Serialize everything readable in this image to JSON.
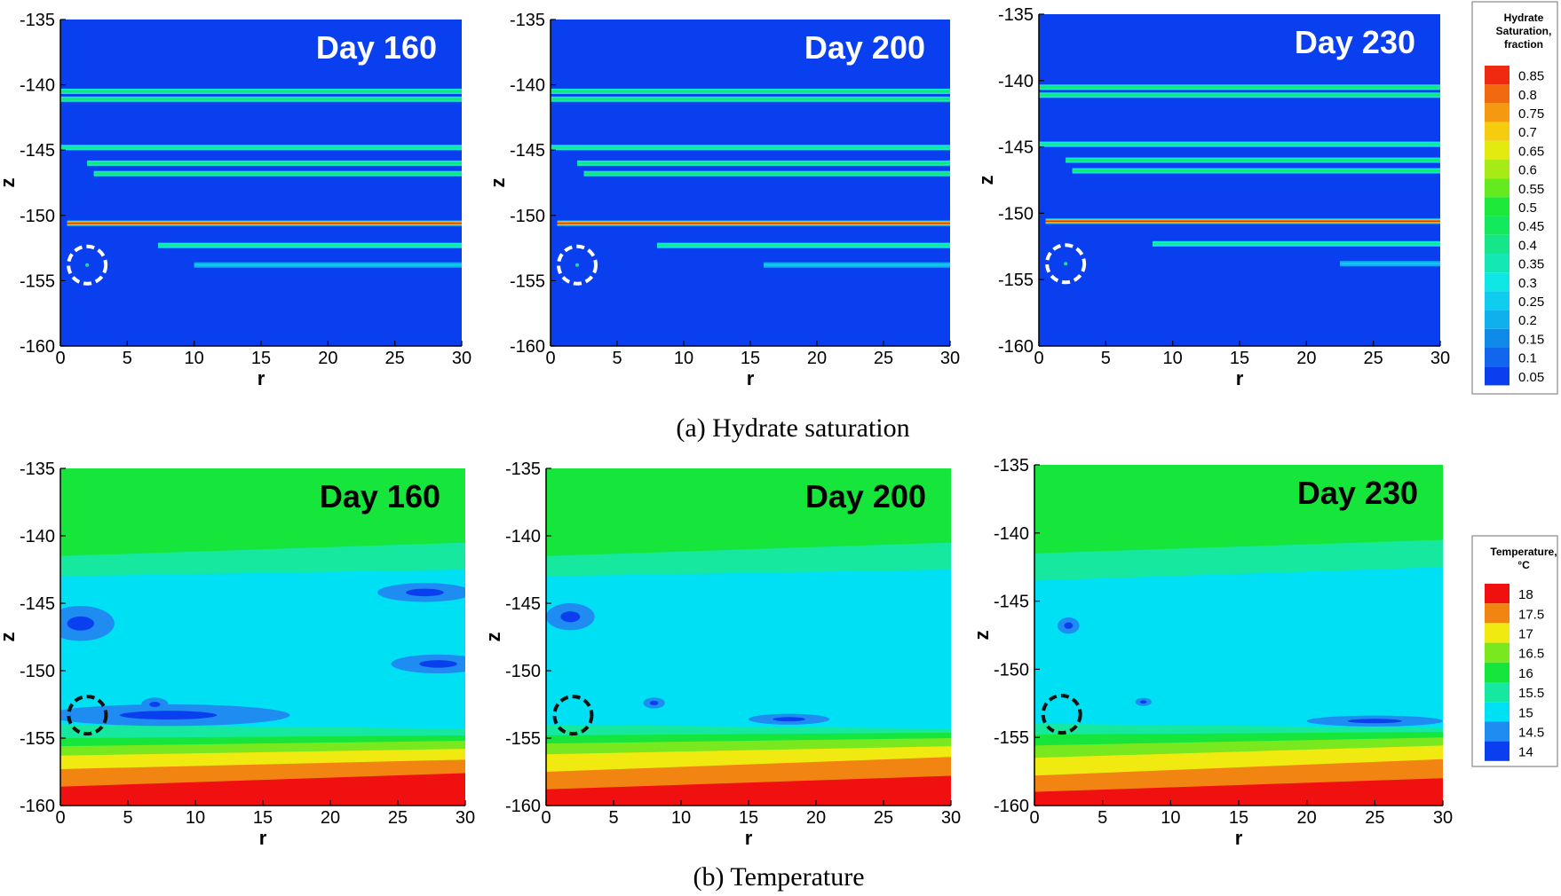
{
  "chart_data": [
    {
      "type": "heatmap",
      "row": "hydrate",
      "panel_label": "Day 160",
      "xlabel": "r",
      "ylabel": "z",
      "xlim": [
        0,
        30
      ],
      "ylim": [
        -160,
        -135
      ],
      "xticks": [
        "0",
        "5",
        "10",
        "15",
        "20",
        "25",
        "30"
      ],
      "yticks": [
        "-160",
        "-155",
        "-150",
        "-145",
        "-140",
        "-135"
      ],
      "background_value": 0.05,
      "layers": [
        {
          "z": -140.5,
          "r_start": 0,
          "value": 0.45
        },
        {
          "z": -141.1,
          "r_start": 0,
          "value": 0.45
        },
        {
          "z": -144.8,
          "r_start": 0,
          "value": 0.4
        },
        {
          "z": -146.0,
          "r_start": 2,
          "value": 0.45
        },
        {
          "z": -146.8,
          "r_start": 2.5,
          "value": 0.45
        },
        {
          "z": -150.6,
          "r_start": 0.5,
          "value": 0.85
        },
        {
          "z": -152.3,
          "r_start": 7.3,
          "value": 0.4
        },
        {
          "z": -153.8,
          "r_start": 10,
          "value": 0.25
        }
      ],
      "circle": {
        "r": 2,
        "z": -153.8
      }
    },
    {
      "type": "heatmap",
      "row": "hydrate",
      "panel_label": "Day 200",
      "xlabel": "r",
      "ylabel": "z",
      "xlim": [
        0,
        30
      ],
      "ylim": [
        -160,
        -135
      ],
      "xticks": [
        "0",
        "5",
        "10",
        "15",
        "20",
        "25",
        "30"
      ],
      "yticks": [
        "-160",
        "-155",
        "-150",
        "-145",
        "-140",
        "-135"
      ],
      "background_value": 0.05,
      "layers": [
        {
          "z": -140.5,
          "r_start": 0,
          "value": 0.45
        },
        {
          "z": -141.1,
          "r_start": 0,
          "value": 0.45
        },
        {
          "z": -144.8,
          "r_start": 0,
          "value": 0.4
        },
        {
          "z": -146.0,
          "r_start": 2,
          "value": 0.45
        },
        {
          "z": -146.8,
          "r_start": 2.5,
          "value": 0.45
        },
        {
          "z": -150.6,
          "r_start": 0.5,
          "value": 0.85
        },
        {
          "z": -152.3,
          "r_start": 8,
          "value": 0.4
        },
        {
          "z": -153.8,
          "r_start": 16,
          "value": 0.25
        }
      ],
      "circle": {
        "r": 2,
        "z": -153.8
      }
    },
    {
      "type": "heatmap",
      "row": "hydrate",
      "panel_label": "Day 230",
      "xlabel": "r",
      "ylabel": "z",
      "xlim": [
        0,
        30
      ],
      "ylim": [
        -160,
        -135
      ],
      "xticks": [
        "0",
        "5",
        "10",
        "15",
        "20",
        "25",
        "30"
      ],
      "yticks": [
        "-160",
        "-155",
        "-150",
        "-145",
        "-140",
        "-135"
      ],
      "background_value": 0.05,
      "layers": [
        {
          "z": -140.5,
          "r_start": 0,
          "value": 0.45
        },
        {
          "z": -141.1,
          "r_start": 0,
          "value": 0.45
        },
        {
          "z": -144.8,
          "r_start": 0,
          "value": 0.4
        },
        {
          "z": -146.0,
          "r_start": 2,
          "value": 0.45
        },
        {
          "z": -146.8,
          "r_start": 2.5,
          "value": 0.45
        },
        {
          "z": -150.6,
          "r_start": 0.5,
          "value": 0.85
        },
        {
          "z": -152.3,
          "r_start": 8.5,
          "value": 0.4
        },
        {
          "z": -153.8,
          "r_start": 22.5,
          "value": 0.25
        }
      ],
      "circle": {
        "r": 2,
        "z": -153.8
      }
    },
    {
      "type": "heatmap",
      "row": "temperature",
      "panel_label": "Day 160",
      "xlabel": "r",
      "ylabel": "z",
      "xlim": [
        0,
        30
      ],
      "ylim": [
        -160,
        -135
      ],
      "xticks": [
        "0",
        "5",
        "10",
        "15",
        "20",
        "25",
        "30"
      ],
      "yticks": [
        "-160",
        "-155",
        "-150",
        "-145",
        "-140",
        "-135"
      ],
      "bands": [
        {
          "value": 16,
          "z_left": -141.5,
          "z_right": -140.5
        },
        {
          "value": 15.5,
          "z_left": -143,
          "z_right": -142.5
        },
        {
          "value": 15,
          "z_left": -151,
          "z_right": -152
        },
        {
          "value": 15.5,
          "z_left": -154,
          "z_right": -154.3
        },
        {
          "value": 16,
          "z_left": -155,
          "z_right": -154.8
        },
        {
          "value": 16.5,
          "z_left": -155.6,
          "z_right": -155.2
        },
        {
          "value": 17,
          "z_left": -156.3,
          "z_right": -155.8
        },
        {
          "value": 17.5,
          "z_left": -157.3,
          "z_right": -156.6
        },
        {
          "value": 18,
          "z_left": -158.6,
          "z_right": -157.6
        }
      ],
      "cold_spots": [
        {
          "r": 1.5,
          "z": -146.5,
          "rx": 2.5,
          "rz": 1.3,
          "value": 14.5
        },
        {
          "r": 27,
          "z": -144.2,
          "rx": 3.5,
          "rz": 0.7,
          "value": 14.5
        },
        {
          "r": 28,
          "z": -149.5,
          "rx": 3.5,
          "rz": 0.7,
          "value": 14.5
        },
        {
          "r": 8,
          "z": -153.3,
          "rx": 9,
          "rz": 0.8,
          "value": 14.5
        },
        {
          "r": 7,
          "z": -152.5,
          "rx": 1,
          "rz": 0.5,
          "value": 14.5
        }
      ],
      "circle": {
        "r": 2,
        "z": -153.3
      }
    },
    {
      "type": "heatmap",
      "row": "temperature",
      "panel_label": "Day 200",
      "xlabel": "r",
      "ylabel": "z",
      "xlim": [
        0,
        30
      ],
      "ylim": [
        -160,
        -135
      ],
      "xticks": [
        "0",
        "5",
        "10",
        "15",
        "20",
        "25",
        "30"
      ],
      "yticks": [
        "-160",
        "-155",
        "-150",
        "-145",
        "-140",
        "-135"
      ],
      "bands": [
        {
          "value": 16,
          "z_left": -141.5,
          "z_right": -140.5
        },
        {
          "value": 15.5,
          "z_left": -143,
          "z_right": -142.5
        },
        {
          "value": 15,
          "z_left": -151,
          "z_right": -151.5
        },
        {
          "value": 15.5,
          "z_left": -154,
          "z_right": -154.3
        },
        {
          "value": 16,
          "z_left": -154.8,
          "z_right": -154.6
        },
        {
          "value": 16.5,
          "z_left": -155.4,
          "z_right": -155
        },
        {
          "value": 17,
          "z_left": -156.2,
          "z_right": -155.6
        },
        {
          "value": 17.5,
          "z_left": -157.5,
          "z_right": -156.4
        },
        {
          "value": 18,
          "z_left": -158.8,
          "z_right": -157.8
        }
      ],
      "cold_spots": [
        {
          "r": 1.8,
          "z": -146,
          "rx": 1.8,
          "rz": 1,
          "value": 14.5
        },
        {
          "r": 8,
          "z": -152.4,
          "rx": 0.8,
          "rz": 0.4,
          "value": 14.5
        },
        {
          "r": 18,
          "z": -153.6,
          "rx": 3,
          "rz": 0.4,
          "value": 14.5
        }
      ],
      "circle": {
        "r": 2,
        "z": -153.3
      }
    },
    {
      "type": "heatmap",
      "row": "temperature",
      "panel_label": "Day 230",
      "xlabel": "r",
      "ylabel": "z",
      "xlim": [
        0,
        30
      ],
      "ylim": [
        -160,
        -135
      ],
      "xticks": [
        "0",
        "5",
        "10",
        "15",
        "20",
        "25",
        "30"
      ],
      "yticks": [
        "-160",
        "-155",
        "-150",
        "-145",
        "-140",
        "-135"
      ],
      "bands": [
        {
          "value": 16,
          "z_left": -141.5,
          "z_right": -140.5
        },
        {
          "value": 15.5,
          "z_left": -143.5,
          "z_right": -142.5
        },
        {
          "value": 15,
          "z_left": -151,
          "z_right": -151.5
        },
        {
          "value": 15.5,
          "z_left": -154,
          "z_right": -154.3
        },
        {
          "value": 16,
          "z_left": -154.8,
          "z_right": -154.6
        },
        {
          "value": 16.5,
          "z_left": -155.6,
          "z_right": -155
        },
        {
          "value": 17,
          "z_left": -156.5,
          "z_right": -155.6
        },
        {
          "value": 17.5,
          "z_left": -157.8,
          "z_right": -156.6
        },
        {
          "value": 18,
          "z_left": -159,
          "z_right": -158
        }
      ],
      "cold_spots": [
        {
          "r": 2.5,
          "z": -146.8,
          "rx": 0.8,
          "rz": 0.6,
          "value": 14.5
        },
        {
          "r": 8,
          "z": -152.4,
          "rx": 0.6,
          "rz": 0.3,
          "value": 14.5
        },
        {
          "r": 25,
          "z": -153.8,
          "rx": 5,
          "rz": 0.4,
          "value": 14.5
        }
      ],
      "circle": {
        "r": 2,
        "z": -153.3
      }
    }
  ],
  "captions": {
    "hydrate": "(a) Hydrate saturation",
    "temperature": "(b) Temperature"
  },
  "legends": {
    "hydrate": {
      "title": [
        "Hydrate",
        "Saturation,",
        "fraction"
      ],
      "levels": [
        "0.05",
        "0.1",
        "0.15",
        "0.2",
        "0.25",
        "0.3",
        "0.35",
        "0.4",
        "0.45",
        "0.5",
        "0.55",
        "0.6",
        "0.65",
        "0.7",
        "0.75",
        "0.8",
        "0.85"
      ],
      "colors": [
        "#0a3ff0",
        "#1266ee",
        "#108ae9",
        "#0fb0ec",
        "#10cdef",
        "#10e6e6",
        "#14e6b4",
        "#16e68a",
        "#14e85c",
        "#1ee83a",
        "#64ea1e",
        "#a8ea16",
        "#e2ea10",
        "#f5cc10",
        "#f59a10",
        "#f26a10",
        "#ef2a10"
      ]
    },
    "temperature": {
      "title": [
        "Temperature,",
        "°C"
      ],
      "levels": [
        "14",
        "14.5",
        "15",
        "15.5",
        "16",
        "16.5",
        "17",
        "17.5",
        "18"
      ],
      "colors": [
        "#0a3ff0",
        "#1e8cf0",
        "#00e0f4",
        "#16e8a0",
        "#16e63c",
        "#7ae81e",
        "#f0ea10",
        "#f28412",
        "#f01010"
      ]
    }
  }
}
